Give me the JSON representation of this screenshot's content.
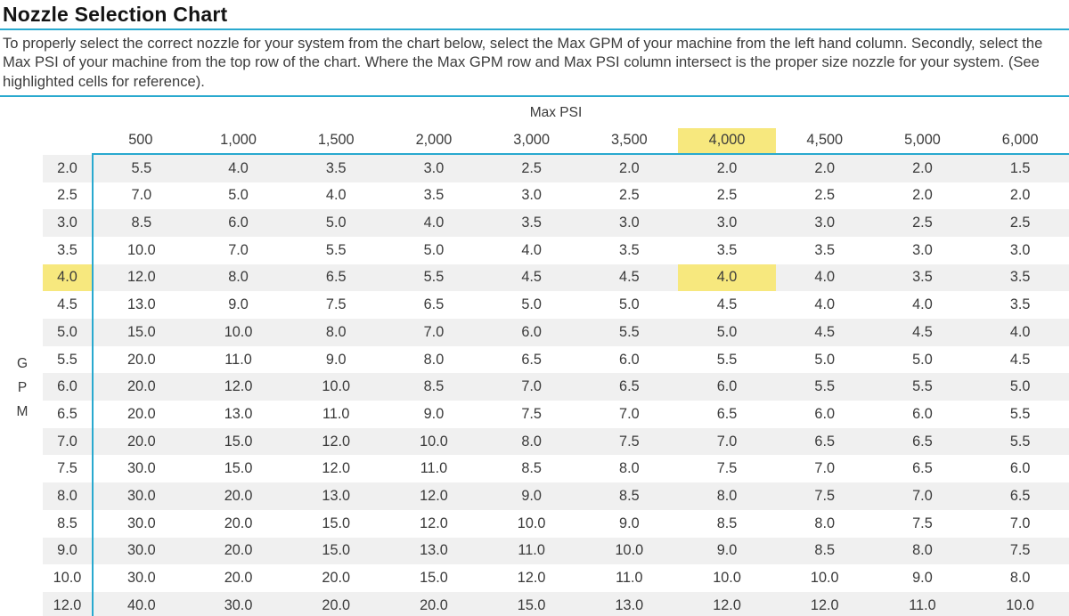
{
  "title": "Nozzle Selection Chart",
  "intro": "To properly select the correct nozzle for your system from the chart below, select the Max GPM of your machine from the left hand column. Secondly, select the Max PSI of your machine from the top row of the chart. Where the Max GPM row and Max PSI column intersect is the proper size nozzle for your system. (See highlighted cells for reference).",
  "colors": {
    "accent": "#29a9cf",
    "highlight": "#f7e87e",
    "stripe": "#f0f0f0"
  },
  "axis": {
    "col_label": "Max PSI",
    "row_label": "GPM"
  },
  "chart_data": {
    "type": "table",
    "title": "Nozzle Selection Chart",
    "columns": [
      "500",
      "1,000",
      "1,500",
      "2,000",
      "3,000",
      "3,500",
      "4,000",
      "4,500",
      "5,000",
      "6,000"
    ],
    "highlight": {
      "col_index": 6,
      "row_index": 4,
      "psi": "4,000",
      "gpm": 4.0,
      "nozzle": 4.0
    },
    "rows": [
      {
        "gpm": 2.0,
        "values": [
          5.5,
          4.0,
          3.5,
          3.0,
          2.5,
          2.0,
          2.0,
          2.0,
          2.0,
          1.5
        ]
      },
      {
        "gpm": 2.5,
        "values": [
          7.0,
          5.0,
          4.0,
          3.5,
          3.0,
          2.5,
          2.5,
          2.5,
          2.0,
          2.0
        ]
      },
      {
        "gpm": 3.0,
        "values": [
          8.5,
          6.0,
          5.0,
          4.0,
          3.5,
          3.0,
          3.0,
          3.0,
          2.5,
          2.5
        ]
      },
      {
        "gpm": 3.5,
        "values": [
          10.0,
          7.0,
          5.5,
          5.0,
          4.0,
          3.5,
          3.5,
          3.5,
          3.0,
          3.0
        ]
      },
      {
        "gpm": 4.0,
        "values": [
          12.0,
          8.0,
          6.5,
          5.5,
          4.5,
          4.5,
          4.0,
          4.0,
          3.5,
          3.5
        ]
      },
      {
        "gpm": 4.5,
        "values": [
          13.0,
          9.0,
          7.5,
          6.5,
          5.0,
          5.0,
          4.5,
          4.0,
          4.0,
          3.5
        ]
      },
      {
        "gpm": 5.0,
        "values": [
          15.0,
          10.0,
          8.0,
          7.0,
          6.0,
          5.5,
          5.0,
          4.5,
          4.5,
          4.0
        ]
      },
      {
        "gpm": 5.5,
        "values": [
          20.0,
          11.0,
          9.0,
          8.0,
          6.5,
          6.0,
          5.5,
          5.0,
          5.0,
          4.5
        ]
      },
      {
        "gpm": 6.0,
        "values": [
          20.0,
          12.0,
          10.0,
          8.5,
          7.0,
          6.5,
          6.0,
          5.5,
          5.5,
          5.0
        ]
      },
      {
        "gpm": 6.5,
        "values": [
          20.0,
          13.0,
          11.0,
          9.0,
          7.5,
          7.0,
          6.5,
          6.0,
          6.0,
          5.5
        ]
      },
      {
        "gpm": 7.0,
        "values": [
          20.0,
          15.0,
          12.0,
          10.0,
          8.0,
          7.5,
          7.0,
          6.5,
          6.5,
          5.5
        ]
      },
      {
        "gpm": 7.5,
        "values": [
          30.0,
          15.0,
          12.0,
          11.0,
          8.5,
          8.0,
          7.5,
          7.0,
          6.5,
          6.0
        ]
      },
      {
        "gpm": 8.0,
        "values": [
          30.0,
          20.0,
          13.0,
          12.0,
          9.0,
          8.5,
          8.0,
          7.5,
          7.0,
          6.5
        ]
      },
      {
        "gpm": 8.5,
        "values": [
          30.0,
          20.0,
          15.0,
          12.0,
          10.0,
          9.0,
          8.5,
          8.0,
          7.5,
          7.0
        ]
      },
      {
        "gpm": 9.0,
        "values": [
          30.0,
          20.0,
          15.0,
          13.0,
          11.0,
          10.0,
          9.0,
          8.5,
          8.0,
          7.5
        ]
      },
      {
        "gpm": 10.0,
        "values": [
          30.0,
          20.0,
          20.0,
          15.0,
          12.0,
          11.0,
          10.0,
          10.0,
          9.0,
          8.0
        ]
      },
      {
        "gpm": 12.0,
        "values": [
          40.0,
          30.0,
          20.0,
          20.0,
          15.0,
          13.0,
          12.0,
          12.0,
          11.0,
          10.0
        ]
      }
    ]
  }
}
